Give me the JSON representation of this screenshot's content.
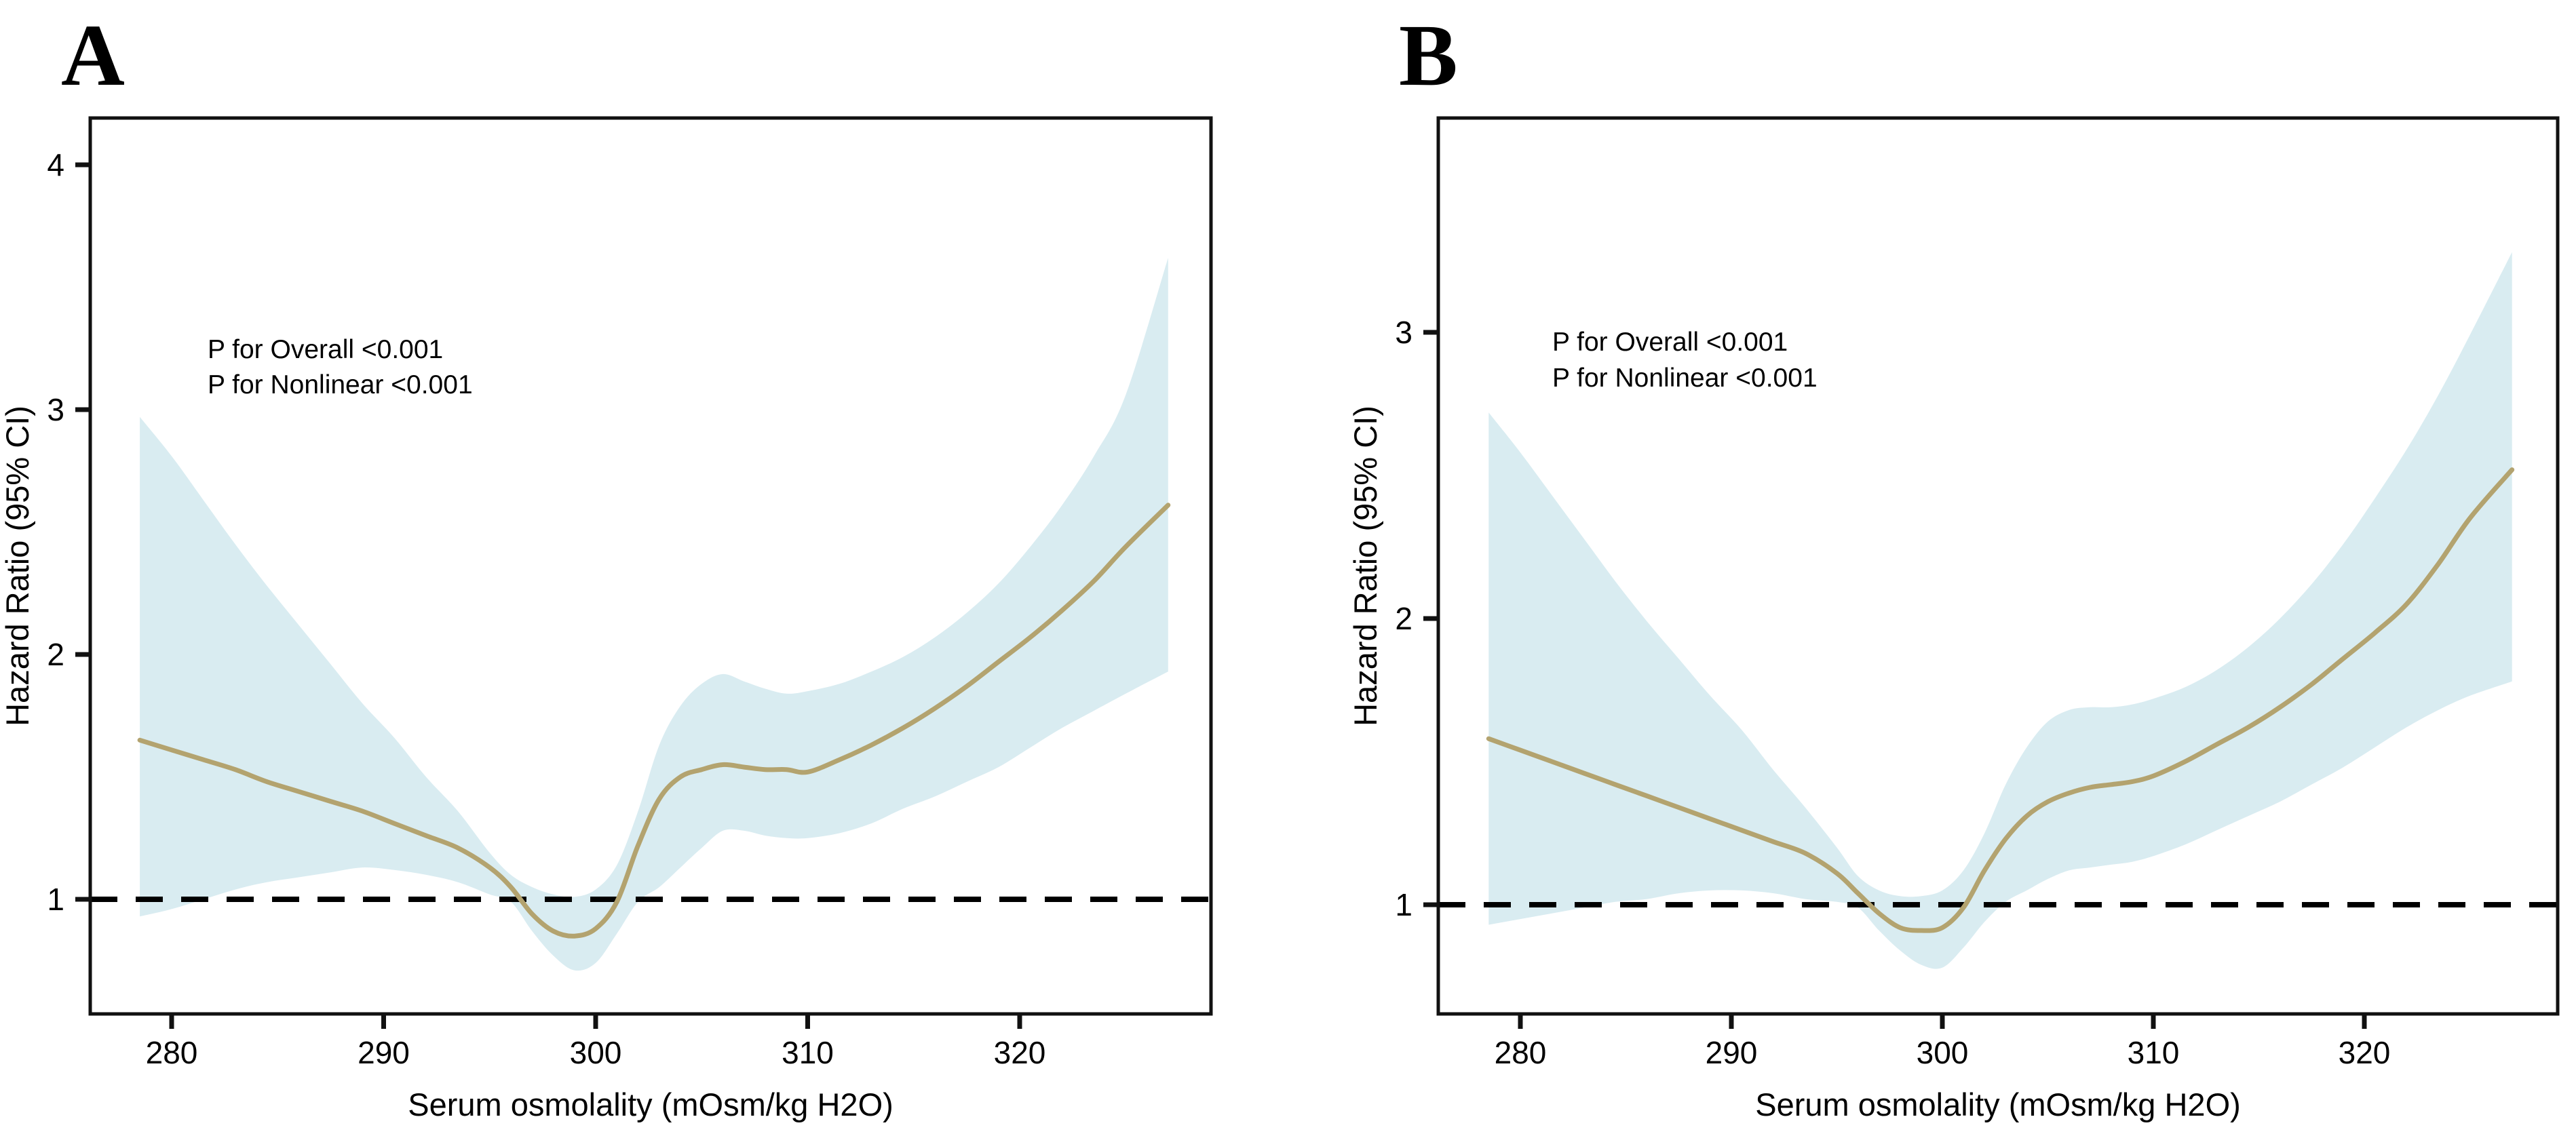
{
  "figure": {
    "background": "#ffffff",
    "panels": [
      {
        "label": "A",
        "ylabel": "Hazard Ratio (95% CI)",
        "xlabel": "Serum osmolality (mOsm/kg H2O)",
        "annotation_line1": "P for Overall <0.001",
        "annotation_line2": "P for Nonlinear <0.001",
        "y_ticks": [
          1,
          2,
          3,
          4
        ],
        "x_ticks": [
          280,
          290,
          300,
          310,
          320
        ],
        "reference_line": 1.0
      },
      {
        "label": "B",
        "ylabel": "Hazard Ratio (95% CI)",
        "xlabel": "Serum osmolality (mOsm/kg H2O)",
        "annotation_line1": "P for Overall <0.001",
        "annotation_line2": "P for Nonlinear <0.001",
        "y_ticks": [
          1,
          2,
          3
        ],
        "x_ticks": [
          280,
          290,
          300,
          310,
          320
        ],
        "reference_line": 1.0
      }
    ]
  },
  "colors": {
    "curve": "#b3a36f",
    "band": "#d9ecf1",
    "axis": "#111111",
    "reference": "#000000",
    "text": "#000000"
  },
  "chart_data": [
    {
      "type": "line",
      "title": "A",
      "xlabel": "Serum osmolality (mOsm/kg H2O)",
      "ylabel": "Hazard Ratio (95% CI)",
      "xlim": [
        276.2,
        329.0
      ],
      "ylim": [
        0.53,
        4.19
      ],
      "x_ticks": [
        280,
        290,
        300,
        310,
        320
      ],
      "y_ticks": [
        1,
        2,
        3,
        4
      ],
      "reference_line_y": 1.0,
      "annotations": [
        "P for Overall <0.001",
        "P for Nonlinear <0.001"
      ],
      "legend_position": "none",
      "grid": false,
      "x": [
        278.5,
        280,
        281.5,
        283,
        284.5,
        286,
        287.5,
        289,
        290.5,
        292,
        293.5,
        295,
        296,
        297,
        298,
        299,
        300,
        301,
        302,
        303,
        304,
        305,
        306,
        307,
        308,
        309,
        310,
        311.5,
        313,
        314.5,
        316,
        317.5,
        319,
        320.5,
        322,
        323.5,
        325,
        327
      ],
      "series": [
        {
          "name": "Hazard Ratio",
          "values": [
            1.65,
            1.61,
            1.57,
            1.53,
            1.48,
            1.44,
            1.4,
            1.36,
            1.31,
            1.26,
            1.21,
            1.13,
            1.05,
            0.94,
            0.87,
            0.85,
            0.88,
            0.99,
            1.22,
            1.41,
            1.5,
            1.53,
            1.55,
            1.54,
            1.53,
            1.53,
            1.52,
            1.57,
            1.63,
            1.7,
            1.78,
            1.87,
            1.97,
            2.07,
            2.18,
            2.3,
            2.44,
            2.61
          ]
        },
        {
          "name": "Upper 95% CI",
          "values": [
            2.97,
            2.81,
            2.63,
            2.45,
            2.28,
            2.12,
            1.96,
            1.8,
            1.66,
            1.5,
            1.36,
            1.19,
            1.1,
            1.05,
            1.02,
            1.01,
            1.04,
            1.14,
            1.36,
            1.63,
            1.79,
            1.88,
            1.92,
            1.89,
            1.86,
            1.84,
            1.85,
            1.88,
            1.93,
            1.99,
            2.07,
            2.17,
            2.29,
            2.44,
            2.61,
            2.81,
            3.06,
            3.62
          ]
        },
        {
          "name": "Lower 95% CI",
          "values": [
            0.93,
            0.96,
            1.0,
            1.04,
            1.07,
            1.09,
            1.11,
            1.13,
            1.12,
            1.1,
            1.07,
            1.02,
            0.99,
            0.87,
            0.77,
            0.71,
            0.74,
            0.86,
            0.99,
            1.05,
            1.13,
            1.21,
            1.28,
            1.28,
            1.26,
            1.25,
            1.25,
            1.27,
            1.31,
            1.37,
            1.42,
            1.48,
            1.54,
            1.62,
            1.7,
            1.77,
            1.84,
            1.93
          ]
        }
      ]
    },
    {
      "type": "line",
      "title": "B",
      "xlabel": "Serum osmolality (mOsm/kg H2O)",
      "ylabel": "Hazard Ratio (95% CI)",
      "xlim": [
        276.1,
        329.2
      ],
      "ylim": [
        0.62,
        3.75
      ],
      "x_ticks": [
        280,
        290,
        300,
        310,
        320
      ],
      "y_ticks": [
        1,
        2,
        3
      ],
      "reference_line_y": 1.0,
      "annotations": [
        "P for Overall <0.001",
        "P for Nonlinear <0.001"
      ],
      "legend_position": "none",
      "grid": false,
      "x": [
        278.5,
        280,
        281.5,
        283,
        284.5,
        286,
        287.5,
        289,
        290.5,
        292,
        293.5,
        295,
        296,
        297,
        298,
        299,
        300,
        301,
        302,
        303,
        304,
        305,
        306,
        307,
        308,
        309,
        310,
        311.5,
        313,
        314.5,
        316,
        317.5,
        319,
        320.5,
        322,
        323.5,
        325,
        327
      ],
      "series": [
        {
          "name": "Hazard Ratio",
          "values": [
            1.58,
            1.54,
            1.5,
            1.46,
            1.42,
            1.38,
            1.34,
            1.3,
            1.26,
            1.22,
            1.18,
            1.11,
            1.04,
            0.97,
            0.92,
            0.91,
            0.92,
            0.99,
            1.12,
            1.23,
            1.31,
            1.36,
            1.39,
            1.41,
            1.42,
            1.43,
            1.45,
            1.5,
            1.56,
            1.62,
            1.69,
            1.77,
            1.86,
            1.95,
            2.05,
            2.19,
            2.35,
            2.52
          ]
        },
        {
          "name": "Upper 95% CI",
          "values": [
            2.72,
            2.58,
            2.43,
            2.28,
            2.13,
            1.99,
            1.86,
            1.73,
            1.61,
            1.47,
            1.34,
            1.2,
            1.1,
            1.05,
            1.03,
            1.03,
            1.05,
            1.12,
            1.25,
            1.42,
            1.55,
            1.64,
            1.68,
            1.69,
            1.69,
            1.7,
            1.72,
            1.76,
            1.82,
            1.9,
            2.0,
            2.12,
            2.26,
            2.42,
            2.59,
            2.78,
            2.99,
            3.28
          ]
        },
        {
          "name": "Lower 95% CI",
          "values": [
            0.93,
            0.95,
            0.97,
            0.99,
            1.01,
            1.02,
            1.04,
            1.05,
            1.05,
            1.04,
            1.02,
            1.01,
            0.99,
            0.91,
            0.84,
            0.79,
            0.78,
            0.85,
            0.94,
            1.01,
            1.05,
            1.09,
            1.12,
            1.13,
            1.14,
            1.15,
            1.17,
            1.21,
            1.26,
            1.31,
            1.36,
            1.42,
            1.48,
            1.55,
            1.62,
            1.68,
            1.73,
            1.78
          ]
        }
      ]
    }
  ]
}
